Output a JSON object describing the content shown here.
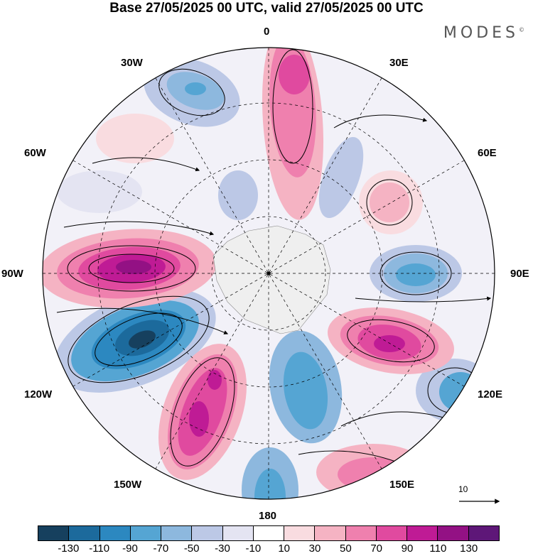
{
  "title": "Base 27/05/2025 00 UTC, valid 27/05/2025 00 UTC",
  "brand": "MODES",
  "brand_mark": "©",
  "longitude_labels": {
    "lon_0": "0",
    "lon_30e": "30E",
    "lon_60e": "60E",
    "lon_90e": "90E",
    "lon_120e": "120E",
    "lon_150e": "150E",
    "lon_180": "180",
    "lon_150w": "150W",
    "lon_120w": "120W",
    "lon_90w": "90W",
    "lon_60w": "60W",
    "lon_30w": "30W"
  },
  "reference_vector": "10",
  "colorbar": {
    "colors": [
      "#16405e",
      "#1c6a9c",
      "#2c88c0",
      "#55a5d3",
      "#8db8de",
      "#bcc8e6",
      "#e4e4f2",
      "#ffffff",
      "#f9dce0",
      "#f5b3c3",
      "#ef80ae",
      "#e04a9f",
      "#bf1b95",
      "#931184",
      "#5e1778"
    ],
    "ticks": [
      "-130",
      "-110",
      "-90",
      "-70",
      "-50",
      "-30",
      "-10",
      "10",
      "30",
      "50",
      "70",
      "90",
      "110",
      "130"
    ]
  }
}
